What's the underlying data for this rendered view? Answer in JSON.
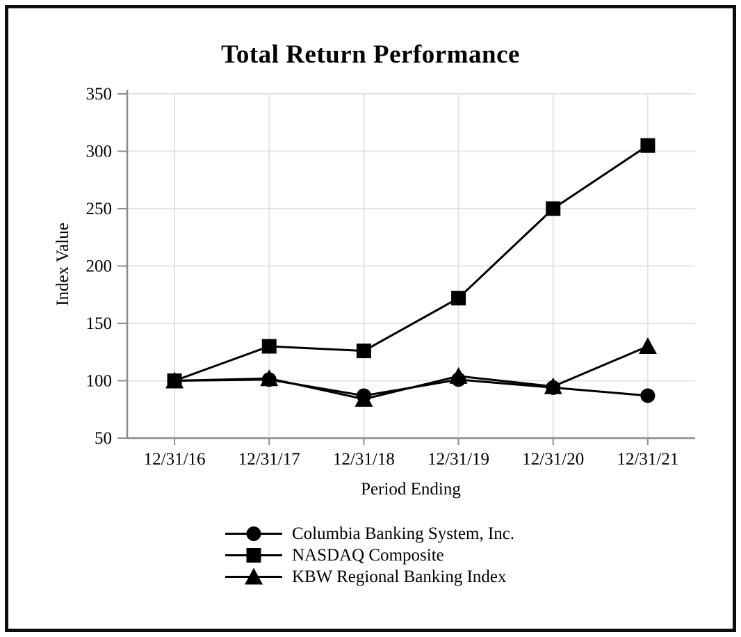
{
  "chart_data": {
    "type": "line",
    "title": "Total Return Performance",
    "xlabel": "Period Ending",
    "ylabel": "Index Value",
    "categories": [
      "12/31/16",
      "12/31/17",
      "12/31/18",
      "12/31/19",
      "12/31/20",
      "12/31/21"
    ],
    "series": [
      {
        "name": "Columbia Banking System, Inc.",
        "marker": "circle",
        "values": [
          100,
          101,
          87,
          101,
          94,
          87
        ]
      },
      {
        "name": "NASDAQ Composite",
        "marker": "square",
        "values": [
          100,
          130,
          126,
          172,
          250,
          305
        ]
      },
      {
        "name": "KBW Regional Banking Index",
        "marker": "triangle",
        "values": [
          100,
          102,
          84,
          104,
          95,
          130
        ]
      }
    ],
    "ylim": [
      50,
      350
    ],
    "yticks": [
      350,
      300,
      250,
      200,
      150,
      100,
      50
    ],
    "grid": true,
    "legend_position": "bottom-left-of-center",
    "colors": {
      "series": "#000000",
      "gridline": "#e3e3e3",
      "axis": "#8c8c8c",
      "background": "#ffffff",
      "frame_border": "#0d0d0d"
    }
  }
}
